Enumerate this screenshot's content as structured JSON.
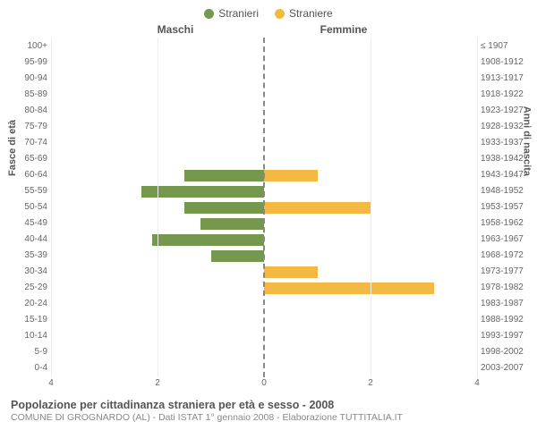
{
  "chart": {
    "type": "population-pyramid",
    "background_color": "#ffffff",
    "grid_color": "#eeeeee",
    "center_line_color": "#888888",
    "legend": {
      "male": {
        "label": "Stranieri",
        "color": "#76984e"
      },
      "female": {
        "label": "Straniere",
        "color": "#f3b942"
      }
    },
    "column_headers": {
      "left": "Maschi",
      "right": "Femmine"
    },
    "y_axis_left": {
      "title": "Fasce di età"
    },
    "y_axis_right": {
      "title": "Anni di nascita"
    },
    "x_axis": {
      "max": 4,
      "ticks_left": [
        4,
        2,
        0
      ],
      "ticks_right": [
        0,
        2,
        4
      ]
    },
    "rows": [
      {
        "age": "100+",
        "birth": "≤ 1907",
        "m": 0,
        "f": 0
      },
      {
        "age": "95-99",
        "birth": "1908-1912",
        "m": 0,
        "f": 0
      },
      {
        "age": "90-94",
        "birth": "1913-1917",
        "m": 0,
        "f": 0
      },
      {
        "age": "85-89",
        "birth": "1918-1922",
        "m": 0,
        "f": 0
      },
      {
        "age": "80-84",
        "birth": "1923-1927",
        "m": 0,
        "f": 0
      },
      {
        "age": "75-79",
        "birth": "1928-1932",
        "m": 0,
        "f": 0
      },
      {
        "age": "70-74",
        "birth": "1933-1937",
        "m": 0,
        "f": 0
      },
      {
        "age": "65-69",
        "birth": "1938-1942",
        "m": 0,
        "f": 0
      },
      {
        "age": "60-64",
        "birth": "1943-1947",
        "m": 1.5,
        "f": 1
      },
      {
        "age": "55-59",
        "birth": "1948-1952",
        "m": 2.3,
        "f": 0
      },
      {
        "age": "50-54",
        "birth": "1953-1957",
        "m": 1.5,
        "f": 2
      },
      {
        "age": "45-49",
        "birth": "1958-1962",
        "m": 1.2,
        "f": 0
      },
      {
        "age": "40-44",
        "birth": "1963-1967",
        "m": 2.1,
        "f": 0
      },
      {
        "age": "35-39",
        "birth": "1968-1972",
        "m": 1,
        "f": 0
      },
      {
        "age": "30-34",
        "birth": "1973-1977",
        "m": 0,
        "f": 1
      },
      {
        "age": "25-29",
        "birth": "1978-1982",
        "m": 0,
        "f": 3.2
      },
      {
        "age": "20-24",
        "birth": "1983-1987",
        "m": 0,
        "f": 0
      },
      {
        "age": "15-19",
        "birth": "1988-1992",
        "m": 0,
        "f": 0
      },
      {
        "age": "10-14",
        "birth": "1993-1997",
        "m": 0,
        "f": 0
      },
      {
        "age": "5-9",
        "birth": "1998-2002",
        "m": 0,
        "f": 0
      },
      {
        "age": "0-4",
        "birth": "2003-2007",
        "m": 0,
        "f": 0
      }
    ],
    "footer": {
      "title": "Popolazione per cittadinanza straniera per età e sesso - 2008",
      "subtitle": "COMUNE DI GROGNARDO (AL) - Dati ISTAT 1° gennaio 2008 - Elaborazione TUTTITALIA.IT"
    }
  }
}
